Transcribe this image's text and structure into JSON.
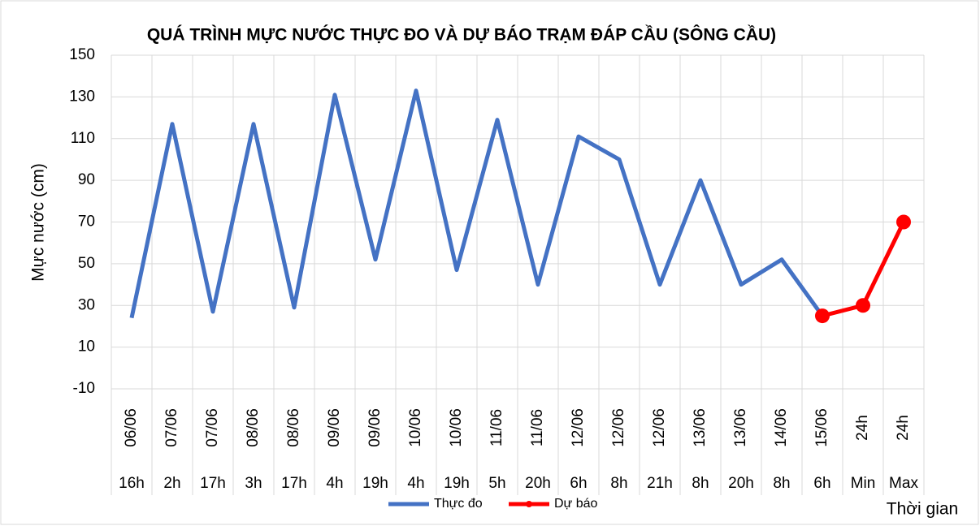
{
  "chart_data": {
    "type": "line",
    "title": "QUÁ TRÌNH MỰC NƯỚC THỰC ĐO VÀ DỰ BÁO TRẠM ĐÁP CẦU (SÔNG CẦU)",
    "y_label": "Mực nước (cm)",
    "x_label": "Thời gian",
    "categories": [
      "06/06",
      "07/06",
      "07/06",
      "08/06",
      "08/06",
      "09/06",
      "09/06",
      "10/06",
      "10/06",
      "11/06",
      "11/06",
      "12/06",
      "12/06",
      "12/06",
      "13/06",
      "13/06",
      "14/06",
      "15/06",
      "24h",
      "24h"
    ],
    "subcategories": [
      "16h",
      "2h",
      "17h",
      "3h",
      "17h",
      "4h",
      "19h",
      "4h",
      "19h",
      "5h",
      "20h",
      "6h",
      "8h",
      "21h",
      "8h",
      "20h",
      "8h",
      "6h",
      "Min",
      "Max"
    ],
    "series": [
      {
        "name": "Thực đo",
        "color": "#4472c4",
        "marker": false,
        "values": [
          24,
          117,
          27,
          117,
          29,
          131,
          52,
          133,
          47,
          119,
          40,
          111,
          100,
          40,
          90,
          40,
          52,
          25,
          null,
          null
        ]
      },
      {
        "name": "Dự báo",
        "color": "#ff0000",
        "marker": true,
        "values": [
          null,
          null,
          null,
          null,
          null,
          null,
          null,
          null,
          null,
          null,
          null,
          null,
          null,
          null,
          null,
          null,
          null,
          25,
          30,
          70
        ]
      }
    ],
    "ylim": [
      -10,
      150
    ],
    "yticks": [
      -10,
      10,
      30,
      50,
      70,
      90,
      110,
      130,
      150
    ],
    "grid": true,
    "legend": "bottom"
  }
}
